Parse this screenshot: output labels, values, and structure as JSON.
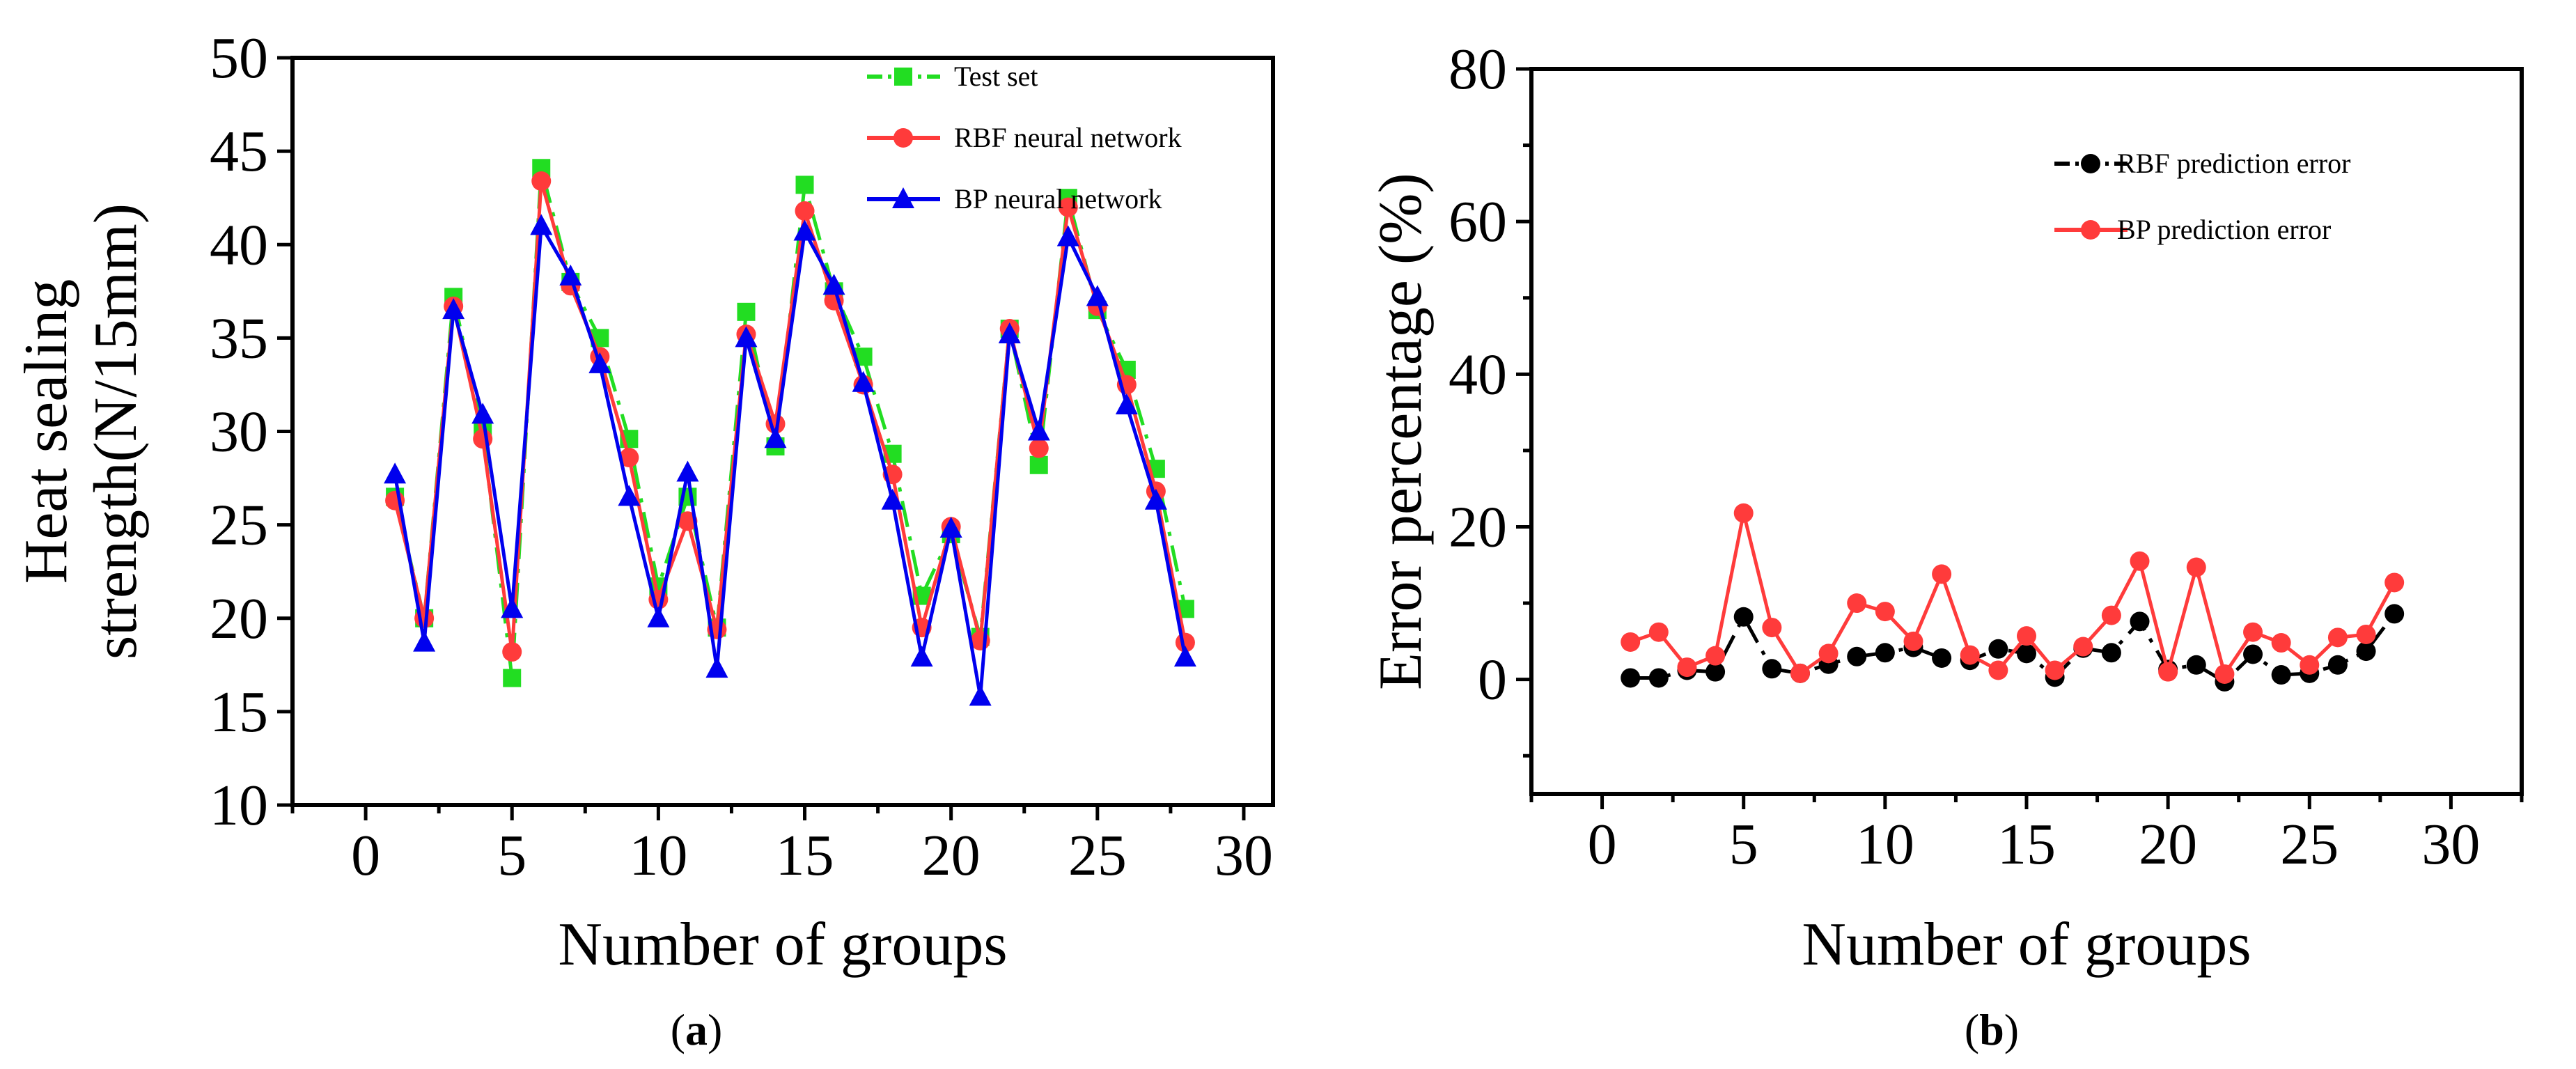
{
  "chart_data": [
    {
      "type": "line",
      "panel_label": "a",
      "caption": "(a)",
      "xlabel": "Number of groups",
      "ylabel": "Heat sealing strength(N/15mm)",
      "ylabel_lines": [
        "Heat sealing",
        "strength(N/15mm)"
      ],
      "xlim": [
        -2.5,
        31
      ],
      "ylim": [
        10,
        50
      ],
      "xticks": [
        0,
        5,
        10,
        15,
        20,
        25,
        30
      ],
      "yticks": [
        10,
        15,
        20,
        25,
        30,
        35,
        40,
        45,
        50
      ],
      "grid": false,
      "legend_position": "top-right",
      "x": [
        1,
        2,
        3,
        4,
        5,
        6,
        7,
        8,
        9,
        10,
        11,
        12,
        13,
        14,
        15,
        16,
        17,
        18,
        19,
        20,
        21,
        22,
        23,
        24,
        25,
        26,
        27,
        28
      ],
      "series": [
        {
          "name": "Test set",
          "color": "#22dd22",
          "marker": "square",
          "dash": "dashdot",
          "values": [
            26.5,
            20,
            37.2,
            30,
            16.8,
            44.1,
            38,
            35,
            29.6,
            21.7,
            26.5,
            19.5,
            36.4,
            29.2,
            43.2,
            37.5,
            34,
            28.8,
            21.2,
            24.5,
            19,
            35.5,
            28.2,
            42.5,
            36.5,
            33.3,
            28,
            20.5
          ]
        },
        {
          "name": "RBF neural network",
          "color": "#ff3b3b",
          "marker": "circle",
          "dash": "solid",
          "values": [
            26.3,
            20,
            36.7,
            29.6,
            18.2,
            43.4,
            37.8,
            34,
            28.6,
            21,
            25.2,
            19.4,
            35.2,
            30.4,
            41.8,
            37,
            32.5,
            27.7,
            19.5,
            24.9,
            18.8,
            35.5,
            29.1,
            42,
            36.7,
            32.5,
            26.8,
            18.7
          ]
        },
        {
          "name": "BP neural network",
          "color": "#0000ee",
          "marker": "triangle",
          "dash": "solid",
          "values": [
            27.7,
            18.7,
            36.5,
            30.9,
            20.5,
            41,
            38.3,
            33.6,
            26.5,
            20,
            27.8,
            17.3,
            35,
            29.6,
            40.7,
            37.8,
            32.6,
            26.3,
            17.9,
            24.8,
            15.8,
            35.2,
            30,
            40.4,
            37.2,
            31.4,
            26.3,
            17.9
          ]
        }
      ]
    },
    {
      "type": "line",
      "panel_label": "b",
      "caption": "(b)",
      "xlabel": "Number of groups",
      "ylabel": "Error percentage (%)",
      "ylabel_lines": [
        "Error percentage (%)"
      ],
      "xlim": [
        -2.5,
        32.5
      ],
      "ylim": [
        -15,
        80
      ],
      "xticks": [
        0,
        5,
        10,
        15,
        20,
        25,
        30
      ],
      "yticks": [
        0,
        20,
        40,
        60,
        80
      ],
      "grid": false,
      "legend_position": "top-right",
      "x": [
        1,
        2,
        3,
        4,
        5,
        6,
        7,
        8,
        9,
        10,
        11,
        12,
        13,
        14,
        15,
        16,
        17,
        18,
        19,
        20,
        21,
        22,
        23,
        24,
        25,
        26,
        27,
        28
      ],
      "series": [
        {
          "name": "RBF prediction error",
          "color": "#000000",
          "marker": "circle",
          "dash": "dashdot",
          "values": [
            0.2,
            0.2,
            1.2,
            1,
            8.2,
            1.4,
            0.8,
            2,
            3,
            3.5,
            4.2,
            2.8,
            2.5,
            4,
            3.4,
            0.3,
            4.1,
            3.5,
            7.6,
            1.3,
            1.9,
            -0.3,
            3.3,
            0.6,
            0.8,
            1.9,
            3.7,
            8.6
          ]
        },
        {
          "name": "BP prediction error",
          "color": "#ff3b3b",
          "marker": "circle",
          "dash": "solid",
          "values": [
            4.9,
            6.2,
            1.6,
            3.1,
            21.8,
            6.8,
            0.8,
            3.4,
            10,
            8.9,
            5,
            13.8,
            3.2,
            1.2,
            5.7,
            1.2,
            4.3,
            8.4,
            15.5,
            1,
            14.7,
            0.7,
            6.2,
            4.8,
            1.9,
            5.5,
            5.9,
            12.7
          ]
        }
      ]
    }
  ]
}
